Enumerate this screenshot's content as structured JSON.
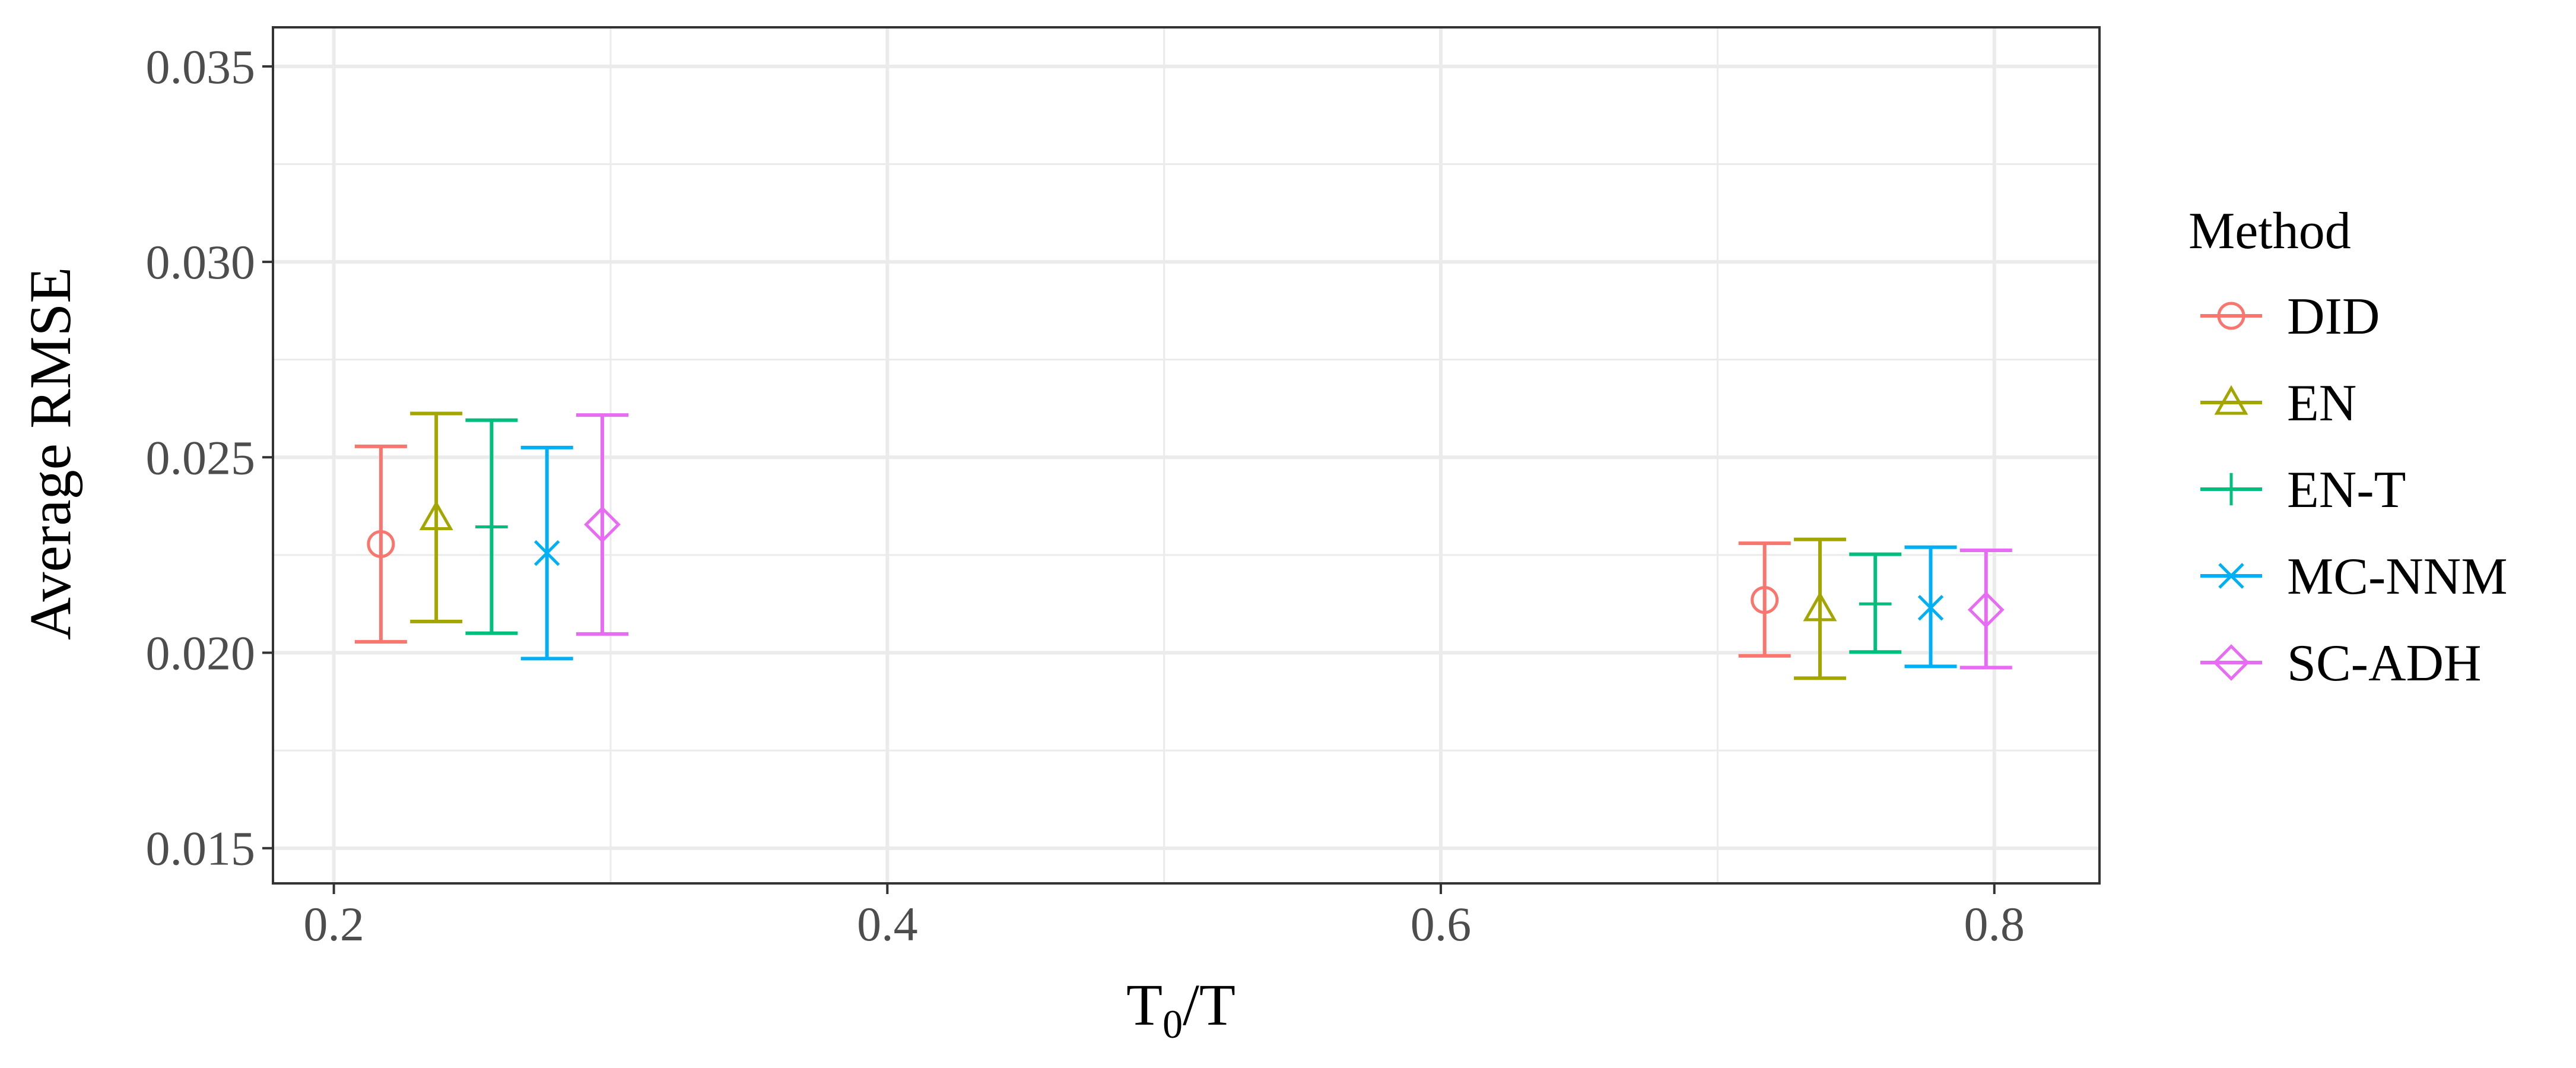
{
  "chart_data": {
    "type": "errorbar",
    "xlabel_base": "T",
    "xlabel_sub": "0",
    "xlabel_rest": "/T",
    "ylabel": "Average RMSE",
    "x_ticks": [
      "0.2",
      "0.4",
      "0.6",
      "0.8"
    ],
    "y_ticks": [
      "0.015",
      "0.020",
      "0.025",
      "0.030",
      "0.035"
    ],
    "xlim": [
      0.178,
      0.838
    ],
    "ylim": [
      0.0141,
      0.036
    ],
    "grid": true,
    "legend_position": "right",
    "legend_title": "Method",
    "series": [
      {
        "name": "DID",
        "color": "#F8766D",
        "marker": "circle",
        "points": [
          {
            "x": 0.217,
            "y": 0.02278,
            "lo": 0.02028,
            "hi": 0.02528
          },
          {
            "x": 0.717,
            "y": 0.02135,
            "lo": 0.01992,
            "hi": 0.0228
          }
        ]
      },
      {
        "name": "EN",
        "color": "#A3A500",
        "marker": "triangle",
        "points": [
          {
            "x": 0.237,
            "y": 0.02345,
            "lo": 0.0208,
            "hi": 0.02612
          },
          {
            "x": 0.737,
            "y": 0.02112,
            "lo": 0.01935,
            "hi": 0.0229
          }
        ]
      },
      {
        "name": "EN-T",
        "color": "#00BF7D",
        "marker": "plus",
        "points": [
          {
            "x": 0.257,
            "y": 0.02322,
            "lo": 0.0205,
            "hi": 0.02595
          },
          {
            "x": 0.757,
            "y": 0.02125,
            "lo": 0.02002,
            "hi": 0.02252
          }
        ]
      },
      {
        "name": "MC-NNM",
        "color": "#00B0F6",
        "marker": "cross",
        "points": [
          {
            "x": 0.277,
            "y": 0.02255,
            "lo": 0.01985,
            "hi": 0.02525
          },
          {
            "x": 0.777,
            "y": 0.02115,
            "lo": 0.01965,
            "hi": 0.0227
          }
        ]
      },
      {
        "name": "SC-ADH",
        "color": "#E76BF3",
        "marker": "diamond",
        "points": [
          {
            "x": 0.297,
            "y": 0.02328,
            "lo": 0.02048,
            "hi": 0.02608
          },
          {
            "x": 0.797,
            "y": 0.0211,
            "lo": 0.01962,
            "hi": 0.02262
          }
        ]
      }
    ]
  }
}
